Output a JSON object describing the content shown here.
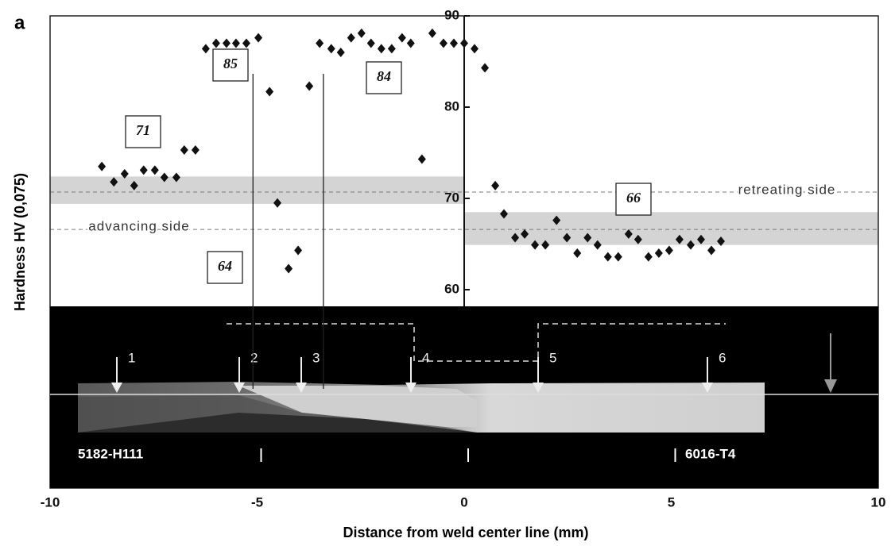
{
  "chart_data": {
    "type": "scatter",
    "panel_label": "a",
    "xlabel": "Distance from weld center line (mm)",
    "ylabel": "Hardness HV (0,075)",
    "xlim": [
      -10,
      10
    ],
    "ylim": [
      60,
      90
    ],
    "xticks": [
      -10,
      -5,
      0,
      5,
      10
    ],
    "yticks": [
      60,
      70,
      80,
      90
    ],
    "color": "#111111",
    "x": [
      -8.75,
      -8.46,
      -8.2,
      -7.97,
      -7.74,
      -7.47,
      -7.24,
      -6.95,
      -6.76,
      -6.49,
      -6.24,
      -5.99,
      -5.74,
      -5.51,
      -5.26,
      -4.97,
      -4.7,
      -4.51,
      -4.24,
      -4.01,
      -3.74,
      -3.49,
      -3.21,
      -2.98,
      -2.73,
      -2.48,
      -2.25,
      -2.0,
      -1.75,
      -1.5,
      -1.29,
      -1.02,
      -0.77,
      -0.5,
      -0.25,
      0.0,
      0.25,
      0.5,
      0.75,
      0.96,
      1.23,
      1.46,
      1.71,
      1.96,
      2.23,
      2.48,
      2.73,
      2.98,
      3.22,
      3.47,
      3.72,
      3.97,
      4.2,
      4.45,
      4.7,
      4.95,
      5.2,
      5.47,
      5.72,
      5.97,
      6.2
    ],
    "values": [
      73.5,
      71.8,
      72.7,
      71.4,
      73.1,
      73.1,
      72.3,
      72.3,
      75.3,
      75.3,
      86.4,
      87.0,
      87.0,
      87.0,
      87.0,
      87.6,
      81.7,
      69.5,
      62.3,
      64.3,
      82.3,
      87.0,
      86.4,
      86.0,
      87.6,
      88.1,
      87.0,
      86.4,
      86.4,
      87.6,
      87.0,
      74.3,
      88.1,
      87.0,
      87.0,
      87.0,
      86.4,
      84.3,
      71.4,
      68.3,
      65.7,
      66.1,
      64.9,
      64.9,
      67.6,
      65.7,
      64.0,
      65.7,
      64.9,
      63.6,
      63.6,
      66.1,
      65.5,
      63.6,
      64.0,
      64.3,
      65.5,
      64.9,
      65.5,
      64.3,
      65.3
    ],
    "bands": [
      {
        "xlim": [
          -10,
          0
        ],
        "ylim": [
          69.4,
          72.4
        ]
      },
      {
        "xlim": [
          0,
          10
        ],
        "ylim": [
          64.9,
          68.5
        ]
      }
    ],
    "hlines": [
      70.7,
      66.6
    ],
    "vlines": [
      -5.1,
      -3.4
    ],
    "annotations": [
      "71",
      "85",
      "84",
      "64",
      "66",
      "advancing side",
      "retreating side"
    ],
    "micrograph_labels": [
      "1",
      "2",
      "3",
      "4",
      "5",
      "6",
      "5182-H111",
      "6016-T4"
    ]
  }
}
